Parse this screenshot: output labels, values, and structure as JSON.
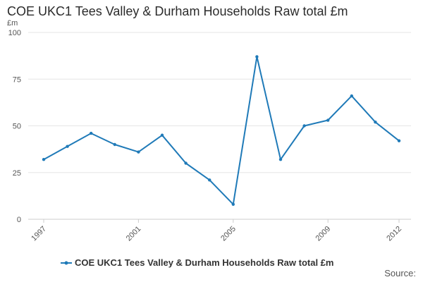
{
  "title": "COE UKC1 Tees Valley & Durham Households Raw total £m",
  "source_label": "Source:",
  "colors": {
    "series": "#1f7ab8",
    "grid": "#e6e6e6",
    "axis": "#cccccc",
    "text": "#555555"
  },
  "chart_data": {
    "type": "line",
    "title": "COE UKC1 Tees Valley & Durham Households Raw total £m",
    "ylabel": "£m",
    "xlabel": "",
    "ylim": [
      0,
      100
    ],
    "yticks": [
      0,
      25,
      50,
      75,
      100
    ],
    "xticks": [
      "1997",
      "2001",
      "2005",
      "2009",
      "2012"
    ],
    "grid": true,
    "legend_position": "bottom",
    "x": [
      "1997",
      "1998",
      "1999",
      "2000",
      "2001",
      "2002",
      "2003",
      "2004",
      "2005",
      "2006",
      "2007",
      "2008",
      "2009",
      "2010",
      "2011",
      "2012"
    ],
    "series": [
      {
        "name": "COE UKC1 Tees Valley & Durham Households Raw total £m",
        "values": [
          32,
          39,
          46,
          40,
          36,
          45,
          30,
          21,
          8,
          87,
          32,
          50,
          53,
          66,
          52,
          42
        ]
      }
    ]
  }
}
